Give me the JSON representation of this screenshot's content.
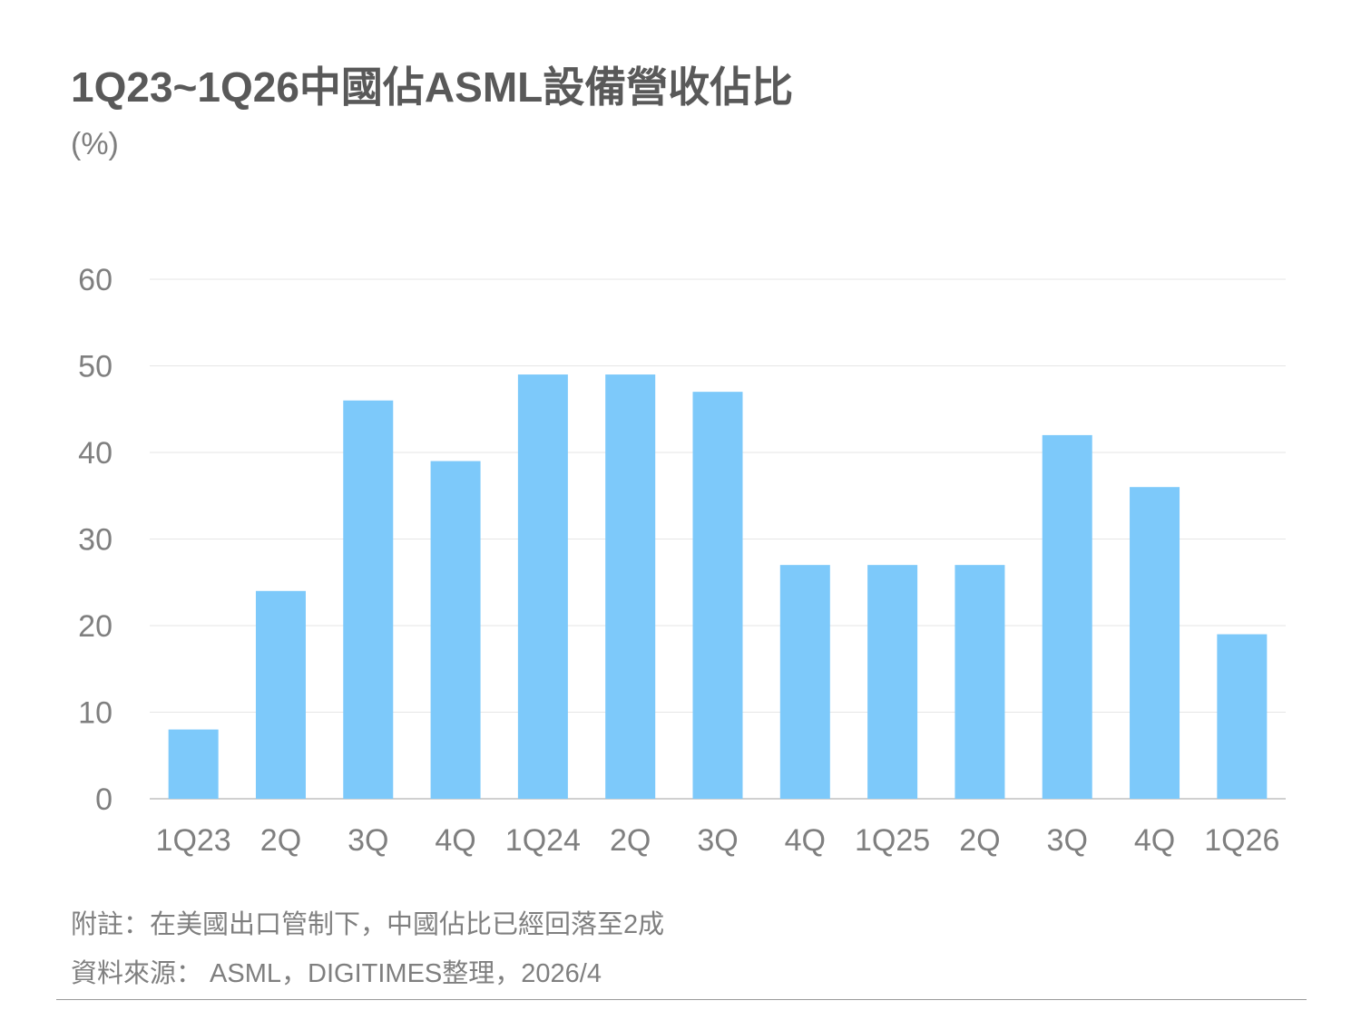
{
  "chart_data": {
    "type": "bar",
    "title": "1Q23~1Q26中國佔ASML設備營收佔比",
    "ylabel": "(%)",
    "xlabel": "",
    "categories": [
      "1Q23",
      "2Q",
      "3Q",
      "4Q",
      "1Q24",
      "2Q",
      "3Q",
      "4Q",
      "1Q25",
      "2Q",
      "3Q",
      "4Q",
      "1Q26"
    ],
    "values": [
      8,
      24,
      46,
      39,
      49,
      49,
      47,
      27,
      27,
      27,
      42,
      36,
      19
    ],
    "ylim": [
      0,
      60
    ],
    "yticks": [
      0,
      10,
      20,
      30,
      40,
      50,
      60
    ],
    "grid": true,
    "bar_color": "#7DC9FA"
  },
  "notes": {
    "footnote": "附註：在美國出口管制下，中國佔比已經回落至2成",
    "source": "資料來源： ASML，DIGITIMES整理，2026/4"
  }
}
